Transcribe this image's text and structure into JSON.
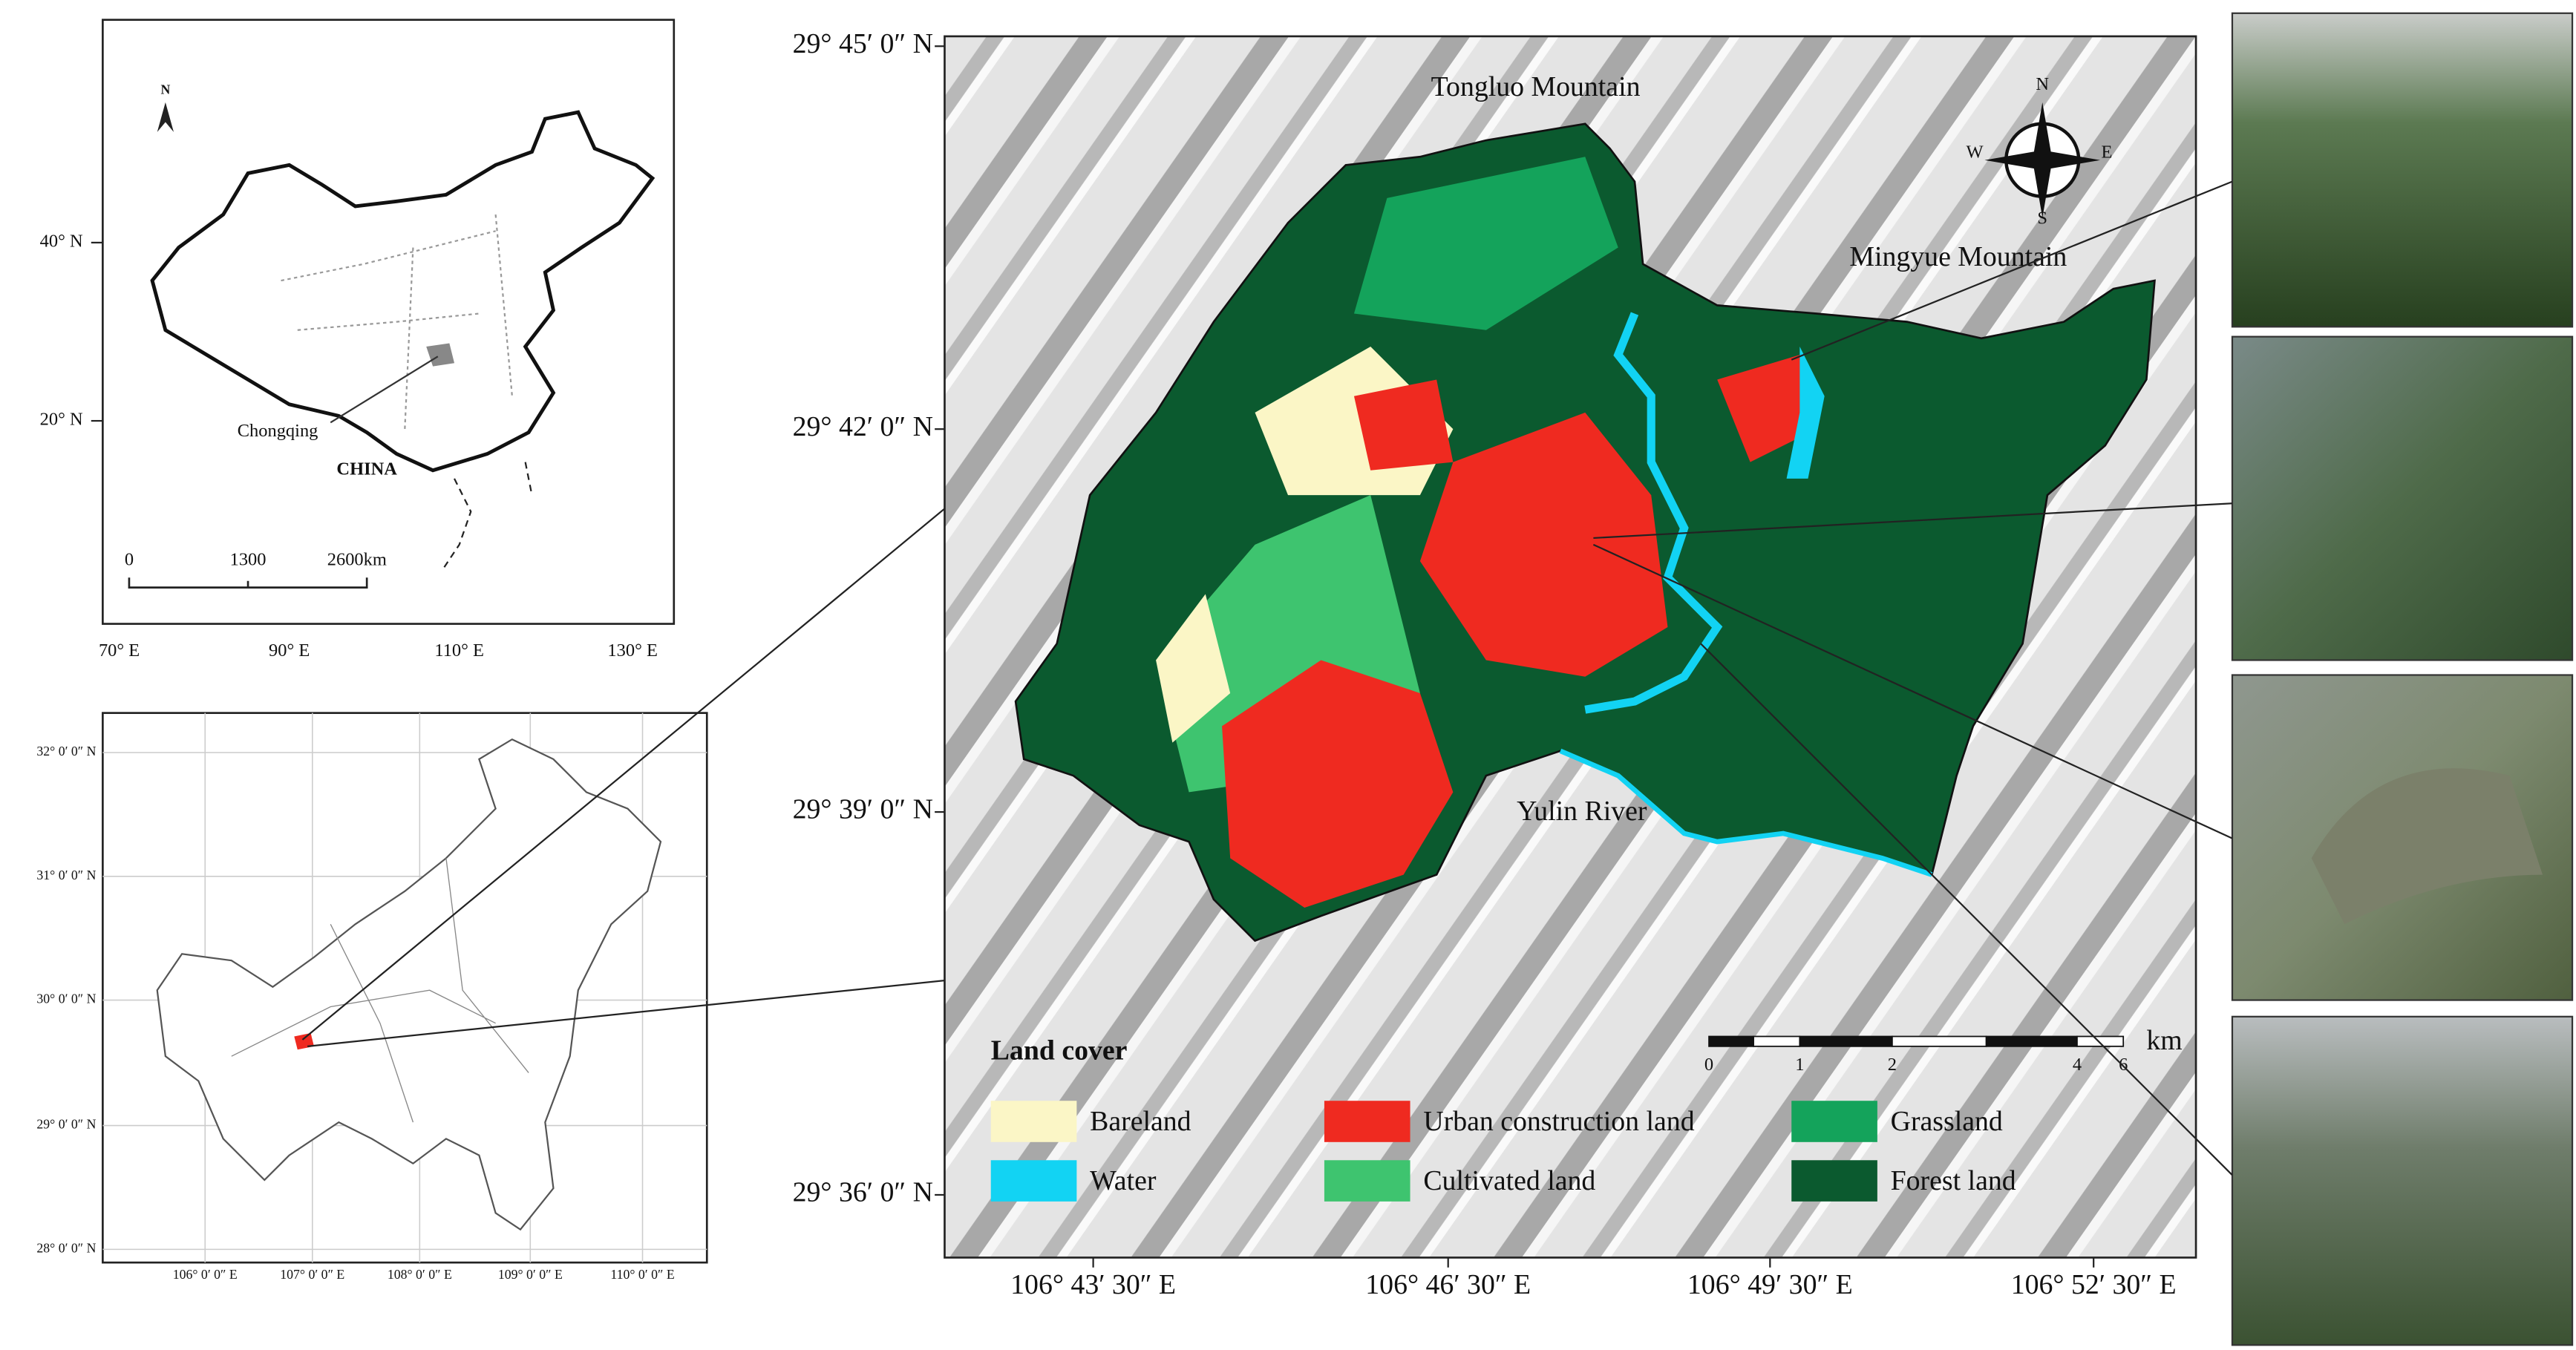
{
  "china_map": {
    "north": "N",
    "lat_labels": [
      "40° N",
      "20° N"
    ],
    "lon_labels": [
      "70° E",
      "90° E",
      "110° E",
      "130° E"
    ],
    "place_labels": [
      "Chongqing",
      "CHINA"
    ],
    "scale_labels": [
      "0",
      "1300",
      "2600km"
    ]
  },
  "chongqing_map": {
    "lat_labels": [
      "32° 0′ 0″ N",
      "31° 0′ 0″ N",
      "30° 0′ 0″ N",
      "29° 0′ 0″ N",
      "28° 0′ 0″ N"
    ],
    "lon_labels": [
      "106° 0′ 0″ E",
      "107° 0′ 0″ E",
      "108° 0′ 0″ E",
      "109° 0′ 0″ E",
      "110° 0′ 0″ E"
    ]
  },
  "main_map": {
    "lat_labels": [
      "29° 45′ 0″ N",
      "29° 42′ 0″ N",
      "29° 39′ 0″ N",
      "29° 36′ 0″ N"
    ],
    "lon_labels": [
      "106° 43′ 30″ E",
      "106° 46′ 30″ E",
      "106° 49′ 30″ E",
      "106° 52′ 30″ E"
    ],
    "place_labels": [
      "Tongluo Mountain",
      "Mingyue Mountain",
      "Yulin River"
    ],
    "compass": [
      "N",
      "E",
      "S",
      "W"
    ],
    "scale_unit": "km",
    "scale_labels": [
      "0",
      "1",
      "2",
      "4",
      "6"
    ],
    "legend": {
      "title": "Land cover",
      "items": [
        {
          "name": "Bareland",
          "color": "#fbf6c6"
        },
        {
          "name": "Urban construction land",
          "color": "#ef2a20"
        },
        {
          "name": "Grassland",
          "color": "#14a35b"
        },
        {
          "name": "Water",
          "color": "#12d3f3"
        },
        {
          "name": "Cultivated land",
          "color": "#3ec46f"
        },
        {
          "name": "Forest land",
          "color": "#0b5a2f"
        }
      ]
    }
  }
}
